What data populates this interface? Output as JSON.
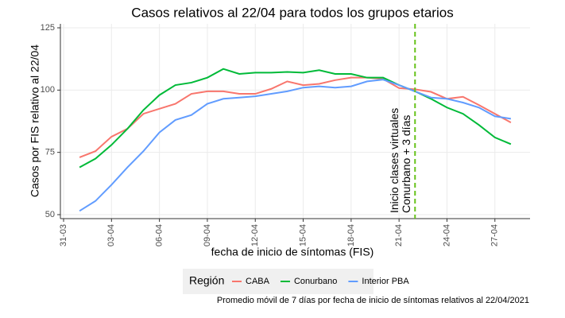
{
  "chart_data": {
    "type": "line",
    "title": "Casos relativos al 22/04 para todos los grupos etarios",
    "x_label": "fecha de inicio de síntomas (FIS)",
    "y_label": "Casos por FIS relativo al 22/04",
    "caption": "Promedio móvil de 7 días por fecha de inicio de síntomas relativos al 22/04/2021",
    "legend_title": "Región",
    "legend_position": "bottom",
    "grid": true,
    "x": [
      "01-04",
      "02-04",
      "03-04",
      "04-04",
      "05-04",
      "06-04",
      "07-04",
      "08-04",
      "09-04",
      "10-04",
      "11-04",
      "12-04",
      "13-04",
      "14-04",
      "15-04",
      "16-04",
      "17-04",
      "18-04",
      "19-04",
      "20-04",
      "21-04",
      "22-04",
      "23-04",
      "24-04",
      "25-04",
      "26-04",
      "27-04",
      "28-04"
    ],
    "series": [
      {
        "name": "CABA",
        "color": "#f8766d",
        "values": [
          73,
          75.5,
          81.3,
          84.5,
          90.5,
          92.5,
          94.5,
          98.5,
          99.5,
          99.5,
          98.5,
          98.5,
          100.5,
          103.5,
          102,
          102.5,
          104,
          105,
          105,
          104.5,
          100.8,
          100.3,
          99.3,
          96.5,
          97.3,
          94,
          90.5,
          87
        ]
      },
      {
        "name": "Conurbano",
        "color": "#00ba38",
        "values": [
          69,
          72.5,
          78,
          84.5,
          92,
          98,
          102,
          103,
          105,
          108.5,
          106.5,
          107,
          107,
          107.3,
          107,
          108,
          106.5,
          106.5,
          105,
          105,
          102,
          99.5,
          96.5,
          93,
          90.5,
          86,
          81,
          78.3
        ]
      },
      {
        "name": "Interior PBA",
        "color": "#619cff",
        "values": [
          51.5,
          55.5,
          62,
          69,
          75.5,
          83,
          88,
          90,
          94.5,
          96.5,
          97,
          97.5,
          98.5,
          99.5,
          101,
          101.5,
          101,
          101.5,
          103.5,
          104.2,
          102,
          99.5,
          97,
          96.5,
          95,
          93,
          89.5,
          88.5
        ]
      }
    ],
    "xlim": [
      "31-03",
      "29-04"
    ],
    "xticks": [
      "31-03",
      "03-04",
      "06-04",
      "09-04",
      "12-04",
      "15-04",
      "18-04",
      "21-04",
      "24-04",
      "27-04"
    ],
    "ylim": [
      50,
      125
    ],
    "yticks": [
      50,
      75,
      100,
      125
    ],
    "vline": {
      "x": "22-04",
      "color": "#66c21a",
      "labels": [
        "Inicio clases virtuales",
        "Conurbano + 3 días"
      ]
    }
  }
}
